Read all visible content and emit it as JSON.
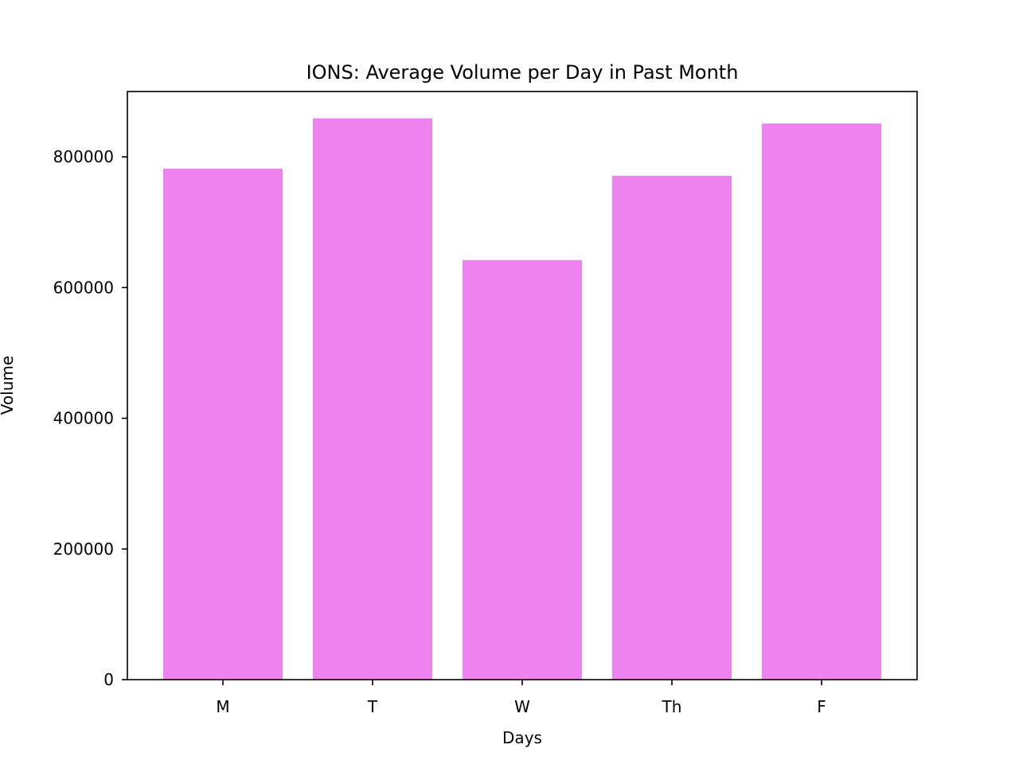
{
  "chart_data": {
    "type": "bar",
    "title": "IONS: Average Volume per Day in Past Month",
    "xlabel": "Days",
    "ylabel": "Volume",
    "categories": [
      "M",
      "T",
      "W",
      "Th",
      "F"
    ],
    "values": [
      782000,
      859000,
      642000,
      771000,
      851000
    ],
    "ylim": [
      0,
      900000
    ],
    "yticks": [
      0,
      200000,
      400000,
      600000,
      800000
    ],
    "ytick_labels": [
      "0",
      "200000",
      "400000",
      "600000",
      "800000"
    ],
    "bar_color": "#ee82ee",
    "grid": false,
    "legend": false
  }
}
